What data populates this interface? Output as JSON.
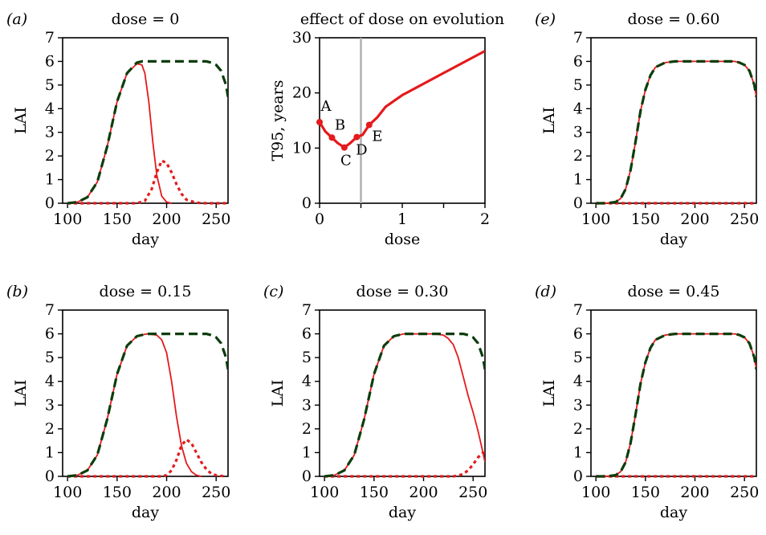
{
  "colors": {
    "susceptible": "#e41a1c",
    "resistant": "#e41a1c",
    "healthy": "#0b3d0b",
    "dose_marker": "#b0b0b0",
    "axes": "#000000"
  },
  "chart_data": [
    {
      "id": "a",
      "type": "line",
      "panel_letter": "(a)",
      "title": "dose = 0",
      "xlabel": "day",
      "ylabel": "LAI",
      "xlim": [
        95,
        262
      ],
      "ylim": [
        0,
        7
      ],
      "x_ticks": [
        100,
        150,
        200,
        250
      ],
      "y_ticks": [
        0,
        1,
        2,
        3,
        4,
        5,
        6,
        7
      ],
      "series": [
        {
          "style": "healthy-dashed",
          "x": [
            100,
            110,
            120,
            130,
            140,
            150,
            160,
            170,
            175,
            180,
            190,
            200,
            210,
            220,
            230,
            240,
            245,
            250,
            255,
            260,
            262
          ],
          "y": [
            0,
            0.05,
            0.25,
            0.9,
            2.4,
            4.3,
            5.5,
            5.95,
            6,
            6,
            6,
            6,
            6,
            6,
            6,
            6,
            5.95,
            5.85,
            5.6,
            5.0,
            4.5
          ]
        },
        {
          "style": "susceptible-solid",
          "x": [
            100,
            110,
            120,
            130,
            140,
            150,
            160,
            170,
            175,
            178,
            182,
            186,
            190,
            195,
            200,
            205
          ],
          "y": [
            0,
            0.05,
            0.25,
            0.9,
            2.4,
            4.3,
            5.5,
            5.9,
            5.85,
            5.5,
            4.3,
            2.6,
            1.2,
            0.3,
            0.05,
            0
          ]
        },
        {
          "style": "resistant-dotted",
          "x": [
            100,
            170,
            178,
            185,
            190,
            195,
            200,
            205,
            210,
            215,
            220,
            230,
            240,
            250,
            260
          ],
          "y": [
            0,
            0,
            0.1,
            0.6,
            1.3,
            1.8,
            1.7,
            1.3,
            0.8,
            0.4,
            0.15,
            0.02,
            0,
            0,
            0
          ]
        }
      ]
    },
    {
      "id": "b",
      "type": "line",
      "panel_letter": "(b)",
      "title": "dose = 0.15",
      "xlabel": "day",
      "ylabel": "LAI",
      "xlim": [
        95,
        262
      ],
      "ylim": [
        0,
        7
      ],
      "x_ticks": [
        100,
        150,
        200,
        250
      ],
      "y_ticks": [
        0,
        1,
        2,
        3,
        4,
        5,
        6,
        7
      ],
      "series": [
        {
          "style": "healthy-dashed",
          "x": [
            100,
            110,
            120,
            130,
            140,
            150,
            160,
            170,
            180,
            190,
            200,
            210,
            220,
            230,
            240,
            245,
            250,
            255,
            260,
            262
          ],
          "y": [
            0,
            0.05,
            0.25,
            0.9,
            2.4,
            4.3,
            5.5,
            5.9,
            6,
            6,
            6,
            6,
            6,
            6,
            6,
            5.95,
            5.85,
            5.6,
            5.0,
            4.5
          ]
        },
        {
          "style": "susceptible-solid",
          "x": [
            100,
            110,
            120,
            130,
            140,
            150,
            160,
            170,
            180,
            190,
            195,
            200,
            205,
            210,
            215,
            220,
            225,
            230,
            235
          ],
          "y": [
            0,
            0.05,
            0.25,
            0.9,
            2.4,
            4.3,
            5.5,
            5.9,
            6,
            5.95,
            5.75,
            5.2,
            4.0,
            2.5,
            1.3,
            0.55,
            0.2,
            0.05,
            0
          ]
        },
        {
          "style": "resistant-dotted",
          "x": [
            100,
            195,
            200,
            205,
            210,
            215,
            220,
            225,
            230,
            235,
            240,
            245,
            250,
            260
          ],
          "y": [
            0,
            0,
            0.05,
            0.25,
            0.7,
            1.3,
            1.55,
            1.4,
            1.0,
            0.6,
            0.3,
            0.12,
            0.04,
            0
          ]
        }
      ]
    },
    {
      "id": "T95",
      "type": "line",
      "panel_letter": "",
      "title": "effect of dose on evolution",
      "xlabel": "dose",
      "ylabel": "T95, years",
      "xlim": [
        0,
        2
      ],
      "ylim": [
        0,
        30
      ],
      "x_ticks": [
        0,
        0.5,
        1,
        1.5,
        2
      ],
      "x_tick_labels": [
        "0",
        "",
        "1",
        "",
        "2"
      ],
      "y_ticks": [
        0,
        10,
        20,
        30
      ],
      "vline": 0.5,
      "series": [
        {
          "style": "red-thick",
          "x": [
            0,
            0.07,
            0.15,
            0.22,
            0.3,
            0.37,
            0.45,
            0.52,
            0.6,
            0.7,
            0.8,
            1,
            1.5,
            2
          ],
          "y": [
            14.7,
            13,
            11.9,
            10.9,
            10.1,
            10.9,
            12,
            12.4,
            14.2,
            15.6,
            17.5,
            19.6,
            23.6,
            27.6
          ]
        }
      ],
      "marked_points": [
        {
          "label": "A",
          "x": 0,
          "y": 14.7
        },
        {
          "label": "B",
          "x": 0.15,
          "y": 11.9
        },
        {
          "label": "C",
          "x": 0.3,
          "y": 10.1
        },
        {
          "label": "D",
          "x": 0.45,
          "y": 12.0
        },
        {
          "label": "E",
          "x": 0.6,
          "y": 14.2
        }
      ]
    },
    {
      "id": "c",
      "type": "line",
      "panel_letter": "(c)",
      "title": "dose = 0.30",
      "xlabel": "day",
      "ylabel": "LAI",
      "xlim": [
        95,
        262
      ],
      "ylim": [
        0,
        7
      ],
      "x_ticks": [
        100,
        150,
        200,
        250
      ],
      "y_ticks": [
        0,
        1,
        2,
        3,
        4,
        5,
        6,
        7
      ],
      "series": [
        {
          "style": "healthy-dashed",
          "x": [
            100,
            110,
            120,
            130,
            140,
            150,
            160,
            170,
            180,
            190,
            200,
            210,
            220,
            230,
            240,
            245,
            250,
            255,
            260,
            262
          ],
          "y": [
            0,
            0.05,
            0.25,
            0.9,
            2.4,
            4.3,
            5.5,
            5.9,
            6,
            6,
            6,
            6,
            6,
            6,
            6,
            5.95,
            5.85,
            5.6,
            5.0,
            4.5
          ]
        },
        {
          "style": "susceptible-solid",
          "x": [
            100,
            110,
            120,
            130,
            140,
            150,
            160,
            170,
            180,
            190,
            200,
            210,
            220,
            225,
            230,
            235,
            240,
            245,
            250,
            255,
            260,
            262
          ],
          "y": [
            0,
            0.05,
            0.25,
            0.9,
            2.4,
            4.3,
            5.5,
            5.9,
            6,
            6,
            6,
            6,
            5.95,
            5.8,
            5.55,
            5.0,
            4.2,
            3.4,
            2.7,
            1.9,
            1.0,
            0.6
          ]
        },
        {
          "style": "resistant-dotted",
          "x": [
            100,
            230,
            235,
            240,
            245,
            250,
            255,
            260,
            262
          ],
          "y": [
            0,
            0,
            0.03,
            0.1,
            0.25,
            0.5,
            0.8,
            1.0,
            0.95
          ]
        }
      ]
    },
    {
      "id": "e",
      "type": "line",
      "panel_letter": "(e)",
      "title": "dose = 0.60",
      "xlabel": "day",
      "ylabel": "LAI",
      "xlim": [
        95,
        262
      ],
      "ylim": [
        0,
        7
      ],
      "x_ticks": [
        100,
        150,
        200,
        250
      ],
      "y_ticks": [
        0,
        1,
        2,
        3,
        4,
        5,
        6,
        7
      ],
      "series": [
        {
          "style": "healthy-dashed",
          "x": [
            100,
            110,
            120,
            125,
            130,
            135,
            140,
            145,
            150,
            155,
            160,
            170,
            180,
            190,
            200,
            210,
            220,
            230,
            240,
            245,
            250,
            255,
            260,
            262
          ],
          "y": [
            0,
            0,
            0.05,
            0.2,
            0.6,
            1.4,
            2.6,
            3.9,
            4.8,
            5.4,
            5.75,
            5.95,
            6,
            6,
            6,
            6,
            6,
            6,
            6,
            5.95,
            5.85,
            5.6,
            5.0,
            4.5
          ]
        },
        {
          "style": "susceptible-solid",
          "x": [
            100,
            110,
            120,
            125,
            130,
            135,
            140,
            145,
            150,
            155,
            160,
            170,
            180,
            190,
            200,
            210,
            220,
            230,
            240,
            245,
            250,
            255,
            260,
            262
          ],
          "y": [
            0,
            0,
            0.05,
            0.2,
            0.6,
            1.4,
            2.6,
            3.9,
            4.8,
            5.4,
            5.75,
            5.95,
            6,
            6,
            6,
            6,
            6,
            6,
            6,
            5.95,
            5.85,
            5.6,
            5.0,
            4.5
          ]
        },
        {
          "style": "resistant-dotted",
          "x": [
            100,
            262
          ],
          "y": [
            0,
            0
          ]
        }
      ]
    },
    {
      "id": "d",
      "type": "line",
      "panel_letter": "(d)",
      "title": "dose = 0.45",
      "xlabel": "day",
      "ylabel": "LAI",
      "xlim": [
        95,
        262
      ],
      "ylim": [
        0,
        7
      ],
      "x_ticks": [
        100,
        150,
        200,
        250
      ],
      "y_ticks": [
        0,
        1,
        2,
        3,
        4,
        5,
        6,
        7
      ],
      "series": [
        {
          "style": "healthy-dashed",
          "x": [
            100,
            110,
            120,
            125,
            130,
            135,
            140,
            145,
            150,
            155,
            160,
            170,
            180,
            190,
            200,
            210,
            220,
            230,
            240,
            245,
            250,
            255,
            260,
            262
          ],
          "y": [
            0,
            0,
            0.05,
            0.2,
            0.6,
            1.4,
            2.6,
            3.9,
            4.8,
            5.4,
            5.75,
            5.95,
            6,
            6,
            6,
            6,
            6,
            6,
            6,
            5.95,
            5.85,
            5.6,
            5.0,
            4.5
          ]
        },
        {
          "style": "susceptible-solid",
          "x": [
            100,
            110,
            120,
            125,
            130,
            135,
            140,
            145,
            150,
            155,
            160,
            170,
            180,
            190,
            200,
            210,
            220,
            230,
            240,
            245,
            250,
            255,
            260,
            262
          ],
          "y": [
            0,
            0,
            0.05,
            0.2,
            0.6,
            1.4,
            2.6,
            3.9,
            4.8,
            5.4,
            5.75,
            5.95,
            6,
            6,
            6,
            6,
            6,
            6,
            6,
            5.95,
            5.85,
            5.6,
            5.0,
            4.5
          ]
        },
        {
          "style": "resistant-dotted",
          "x": [
            100,
            262
          ],
          "y": [
            0,
            0
          ]
        }
      ]
    }
  ]
}
